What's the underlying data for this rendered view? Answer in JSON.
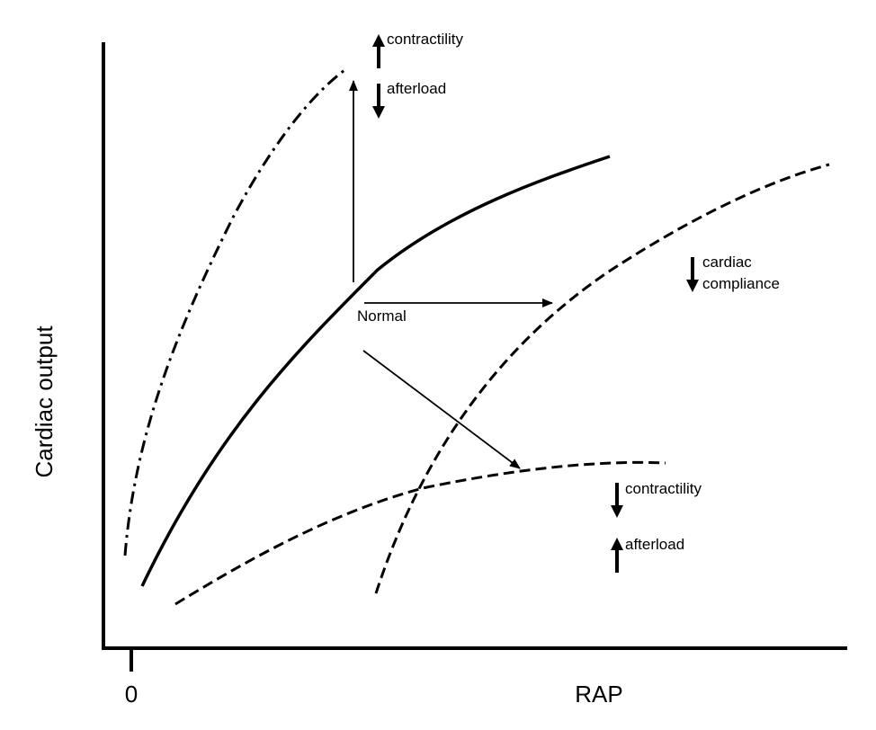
{
  "axes": {
    "xlabel": "RAP",
    "ylabel": "Cardiac output",
    "origin_tick": "0"
  },
  "curves": [
    {
      "id": "normal",
      "label": "Normal",
      "style": "solid"
    },
    {
      "id": "increased-contractility",
      "style": "dash-dot"
    },
    {
      "id": "decreased-compliance",
      "style": "dashed"
    },
    {
      "id": "decreased-contractility",
      "style": "dashed"
    }
  ],
  "annotations": {
    "top": {
      "line1": "contractility",
      "line1_dir": "up",
      "line2": "afterload",
      "line2_dir": "down"
    },
    "right": {
      "line1": "cardiac",
      "line2": "compliance",
      "dir": "down"
    },
    "bottom": {
      "line1": "contractility",
      "line1_dir": "down",
      "line2": "afterload",
      "line2_dir": "up"
    }
  },
  "colors": {
    "ink": "#000000",
    "background": "#ffffff"
  }
}
